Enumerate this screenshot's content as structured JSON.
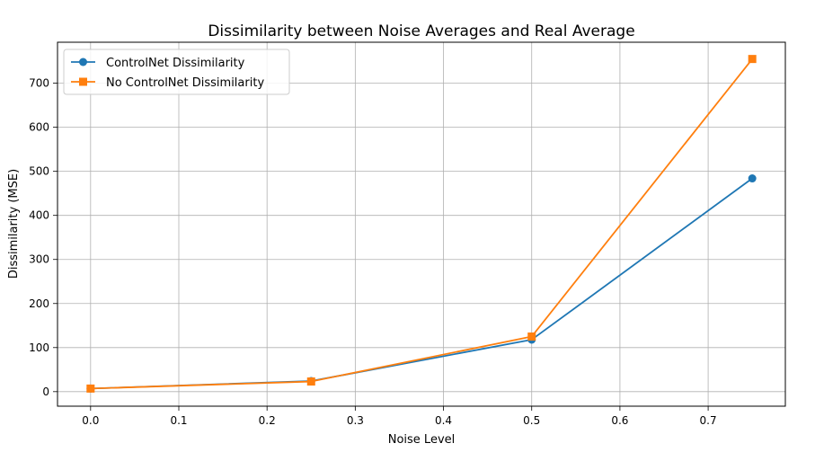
{
  "chart_data": {
    "type": "line",
    "title": "Dissimilarity between Noise Averages and Real Average",
    "xlabel": "Noise Level",
    "ylabel": "Dissimilarity (MSE)",
    "xlim": [
      -0.0375,
      0.7875
    ],
    "ylim": [
      -33,
      793
    ],
    "x_ticks": [
      0.0,
      0.1,
      0.2,
      0.3,
      0.4,
      0.5,
      0.6,
      0.7
    ],
    "x_tick_labels": [
      "0.0",
      "0.1",
      "0.2",
      "0.3",
      "0.4",
      "0.5",
      "0.6",
      "0.7"
    ],
    "y_ticks": [
      0,
      100,
      200,
      300,
      400,
      500,
      600,
      700
    ],
    "y_tick_labels": [
      "0",
      "100",
      "200",
      "300",
      "400",
      "500",
      "600",
      "700"
    ],
    "grid": true,
    "legend_position": "top-left",
    "x": [
      0.0,
      0.25,
      0.5,
      0.75
    ],
    "series": [
      {
        "name": "ControlNet Dissimilarity",
        "values": [
          7,
          24,
          118,
          484
        ],
        "color": "#1f77b4",
        "marker": "circle"
      },
      {
        "name": "No ControlNet Dissimilarity",
        "values": [
          7,
          23,
          125,
          755
        ],
        "color": "#ff7f0e",
        "marker": "square"
      }
    ]
  }
}
